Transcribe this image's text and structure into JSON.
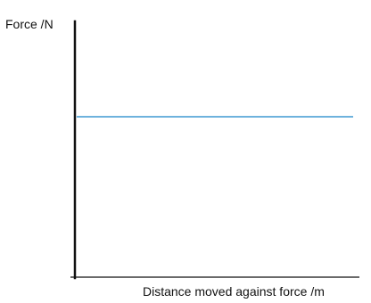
{
  "chart_data": {
    "type": "line",
    "title": "",
    "xlabel": "Distance moved against force /m",
    "ylabel": "Force /N",
    "xticks": [],
    "yticks": [],
    "grid": false,
    "series": [
      {
        "x": [
          "start",
          "end"
        ],
        "y": [
          "constant",
          "constant"
        ],
        "color": "#5aa7d8"
      }
    ],
    "axis_color": "#111111"
  }
}
